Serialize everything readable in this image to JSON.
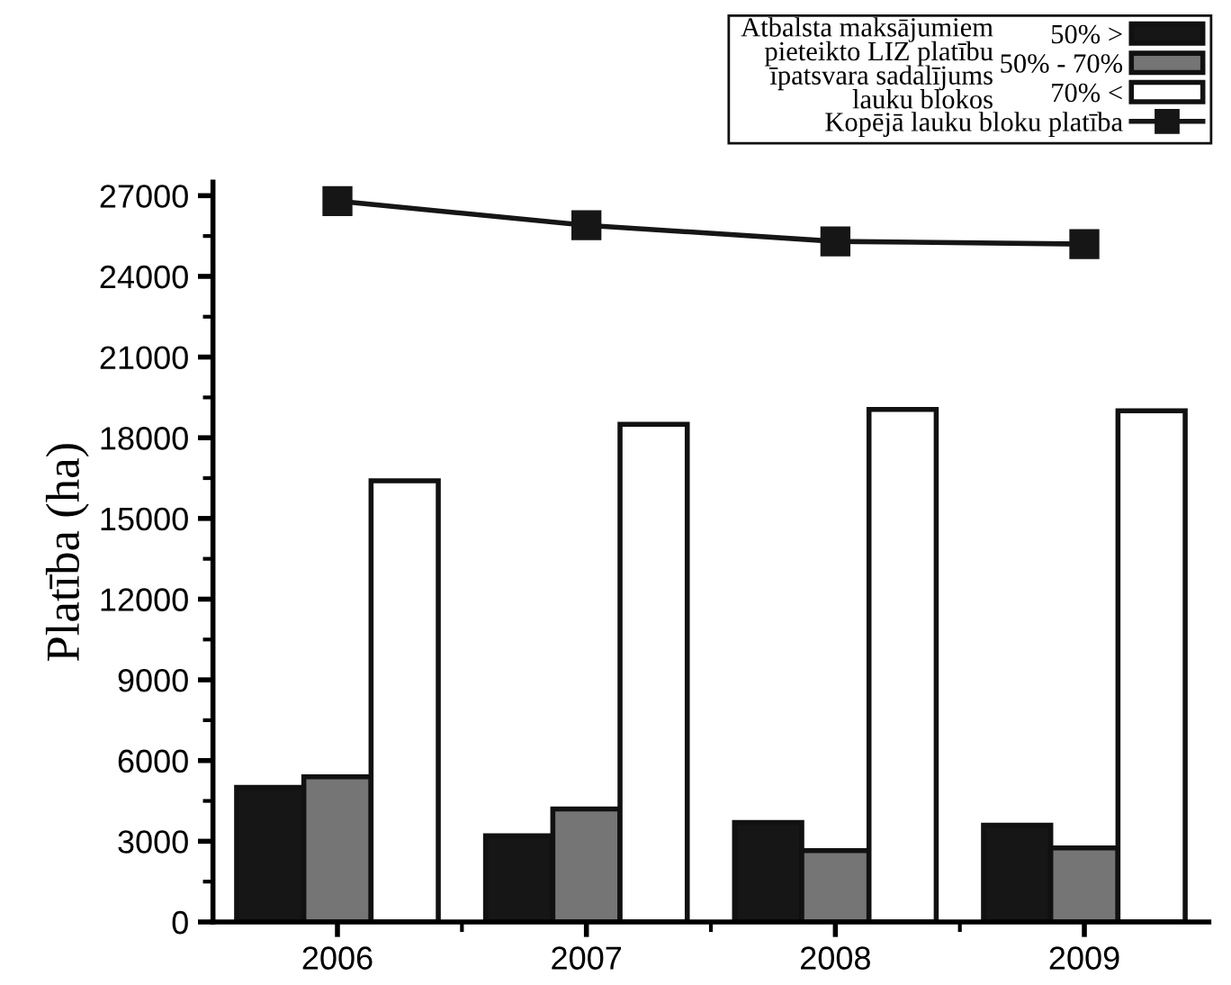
{
  "chart_data": {
    "type": "bar",
    "ylabel": "Platība (ha)",
    "legend_title": "Atbalsta maksājumiem\npieteikto LIZ platību\nīpatsvara sadalījums\nlauku blokos",
    "categories": [
      "2006",
      "2007",
      "2008",
      "2009"
    ],
    "series": [
      {
        "name": "50% >",
        "color": "#161616",
        "values": [
          5000,
          3200,
          3700,
          3600
        ]
      },
      {
        "name": "50% - 70%",
        "color": "#757575",
        "values": [
          5400,
          4200,
          2650,
          2750
        ]
      },
      {
        "name": "70% <",
        "color": "#ffffff",
        "values": [
          16400,
          18500,
          19050,
          19000
        ]
      },
      {
        "name": "Kopējā lauku bloku platība",
        "type": "line",
        "color": "#161616",
        "marker": "square",
        "values": [
          26800,
          25900,
          25300,
          25200
        ]
      }
    ],
    "ylim": [
      0,
      27500
    ],
    "yticks": [
      0,
      3000,
      6000,
      9000,
      12000,
      15000,
      18000,
      21000,
      24000,
      27000
    ],
    "grid": false,
    "legend": "top right"
  }
}
